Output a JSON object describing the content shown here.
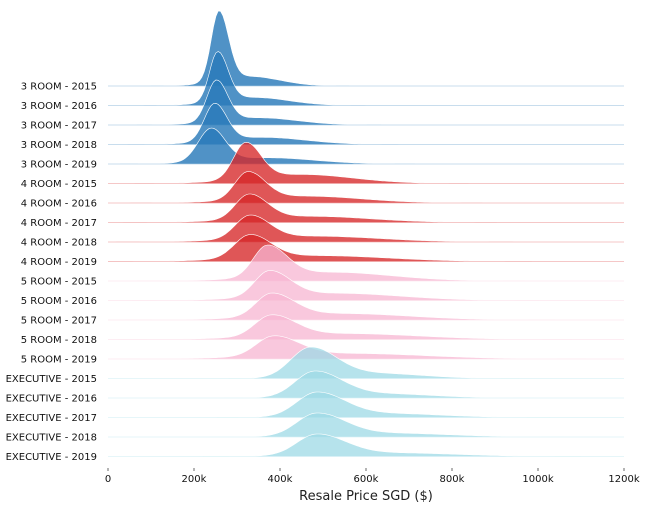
{
  "chart_data": {
    "type": "area",
    "subtype": "ridgeline",
    "title": "",
    "xlabel": "Resale Price SGD ($)",
    "ylabel": "",
    "xlim": [
      0,
      1200000
    ],
    "x_ticks": [
      0,
      200000,
      400000,
      600000,
      800000,
      1000000,
      1200000
    ],
    "x_tick_labels": [
      "0",
      "200k",
      "400k",
      "600k",
      "800k",
      "1000k",
      "1200k"
    ],
    "grid": false,
    "legend": "none",
    "colors": {
      "3 ROOM": "#2a7ab9",
      "4 ROOM": "#d62728",
      "5 ROOM": "#f7b6d2",
      "EXECUTIVE": "#9edae5"
    },
    "series": [
      {
        "name": "3 ROOM - 2015",
        "group": "3 ROOM",
        "peak": 258000,
        "spread_left": 18000,
        "spread_right": 22000,
        "tail_weight": 0.12,
        "tail_center": 330000,
        "tail_spread": 70000,
        "height": 1.0
      },
      {
        "name": "3 ROOM - 2016",
        "group": "3 ROOM",
        "peak": 255000,
        "spread_left": 19000,
        "spread_right": 24000,
        "tail_weight": 0.14,
        "tail_center": 340000,
        "tail_spread": 80000,
        "height": 0.72
      },
      {
        "name": "3 ROOM - 2017",
        "group": "3 ROOM",
        "peak": 252000,
        "spread_left": 22000,
        "spread_right": 26000,
        "tail_weight": 0.15,
        "tail_center": 350000,
        "tail_spread": 90000,
        "height": 0.6
      },
      {
        "name": "3 ROOM - 2018",
        "group": "3 ROOM",
        "peak": 248000,
        "spread_left": 24000,
        "spread_right": 28000,
        "tail_weight": 0.16,
        "tail_center": 360000,
        "tail_spread": 100000,
        "height": 0.55
      },
      {
        "name": "3 ROOM - 2019",
        "group": "3 ROOM",
        "peak": 240000,
        "spread_left": 30000,
        "spread_right": 32000,
        "tail_weight": 0.16,
        "tail_center": 370000,
        "tail_spread": 110000,
        "height": 0.48
      },
      {
        "name": "4 ROOM - 2015",
        "group": "4 ROOM",
        "peak": 320000,
        "spread_left": 28000,
        "spread_right": 35000,
        "tail_weight": 0.2,
        "tail_center": 450000,
        "tail_spread": 120000,
        "height": 0.55
      },
      {
        "name": "4 ROOM - 2016",
        "group": "4 ROOM",
        "peak": 325000,
        "spread_left": 30000,
        "spread_right": 40000,
        "tail_weight": 0.2,
        "tail_center": 460000,
        "tail_spread": 130000,
        "height": 0.42
      },
      {
        "name": "4 ROOM - 2017",
        "group": "4 ROOM",
        "peak": 328000,
        "spread_left": 32000,
        "spread_right": 42000,
        "tail_weight": 0.2,
        "tail_center": 470000,
        "tail_spread": 140000,
        "height": 0.38
      },
      {
        "name": "4 ROOM - 2018",
        "group": "4 ROOM",
        "peak": 330000,
        "spread_left": 34000,
        "spread_right": 45000,
        "tail_weight": 0.2,
        "tail_center": 480000,
        "tail_spread": 150000,
        "height": 0.36
      },
      {
        "name": "4 ROOM - 2019",
        "group": "4 ROOM",
        "peak": 330000,
        "spread_left": 36000,
        "spread_right": 48000,
        "tail_weight": 0.2,
        "tail_center": 490000,
        "tail_spread": 160000,
        "height": 0.36
      },
      {
        "name": "5 ROOM - 2015",
        "group": "5 ROOM",
        "peak": 370000,
        "spread_left": 32000,
        "spread_right": 45000,
        "tail_weight": 0.22,
        "tail_center": 520000,
        "tail_spread": 140000,
        "height": 0.48
      },
      {
        "name": "5 ROOM - 2016",
        "group": "5 ROOM",
        "peak": 375000,
        "spread_left": 34000,
        "spread_right": 48000,
        "tail_weight": 0.22,
        "tail_center": 530000,
        "tail_spread": 150000,
        "height": 0.4
      },
      {
        "name": "5 ROOM - 2017",
        "group": "5 ROOM",
        "peak": 380000,
        "spread_left": 36000,
        "spread_right": 52000,
        "tail_weight": 0.22,
        "tail_center": 540000,
        "tail_spread": 160000,
        "height": 0.36
      },
      {
        "name": "5 ROOM - 2018",
        "group": "5 ROOM",
        "peak": 380000,
        "spread_left": 38000,
        "spread_right": 55000,
        "tail_weight": 0.22,
        "tail_center": 550000,
        "tail_spread": 170000,
        "height": 0.33
      },
      {
        "name": "5 ROOM - 2019",
        "group": "5 ROOM",
        "peak": 385000,
        "spread_left": 40000,
        "spread_right": 58000,
        "tail_weight": 0.22,
        "tail_center": 560000,
        "tail_spread": 180000,
        "height": 0.31
      },
      {
        "name": "EXECUTIVE - 2015",
        "group": "EXECUTIVE",
        "peak": 470000,
        "spread_left": 45000,
        "spread_right": 60000,
        "tail_weight": 0.15,
        "tail_center": 620000,
        "tail_spread": 110000,
        "height": 0.42
      },
      {
        "name": "EXECUTIVE - 2016",
        "group": "EXECUTIVE",
        "peak": 480000,
        "spread_left": 45000,
        "spread_right": 62000,
        "tail_weight": 0.15,
        "tail_center": 630000,
        "tail_spread": 120000,
        "height": 0.36
      },
      {
        "name": "EXECUTIVE - 2017",
        "group": "EXECUTIVE",
        "peak": 485000,
        "spread_left": 46000,
        "spread_right": 64000,
        "tail_weight": 0.15,
        "tail_center": 640000,
        "tail_spread": 130000,
        "height": 0.34
      },
      {
        "name": "EXECUTIVE - 2018",
        "group": "EXECUTIVE",
        "peak": 485000,
        "spread_left": 46000,
        "spread_right": 65000,
        "tail_weight": 0.15,
        "tail_center": 650000,
        "tail_spread": 140000,
        "height": 0.32
      },
      {
        "name": "EXECUTIVE - 2019",
        "group": "EXECUTIVE",
        "peak": 485000,
        "spread_left": 46000,
        "spread_right": 66000,
        "tail_weight": 0.15,
        "tail_center": 660000,
        "tail_spread": 150000,
        "height": 0.3
      }
    ]
  }
}
